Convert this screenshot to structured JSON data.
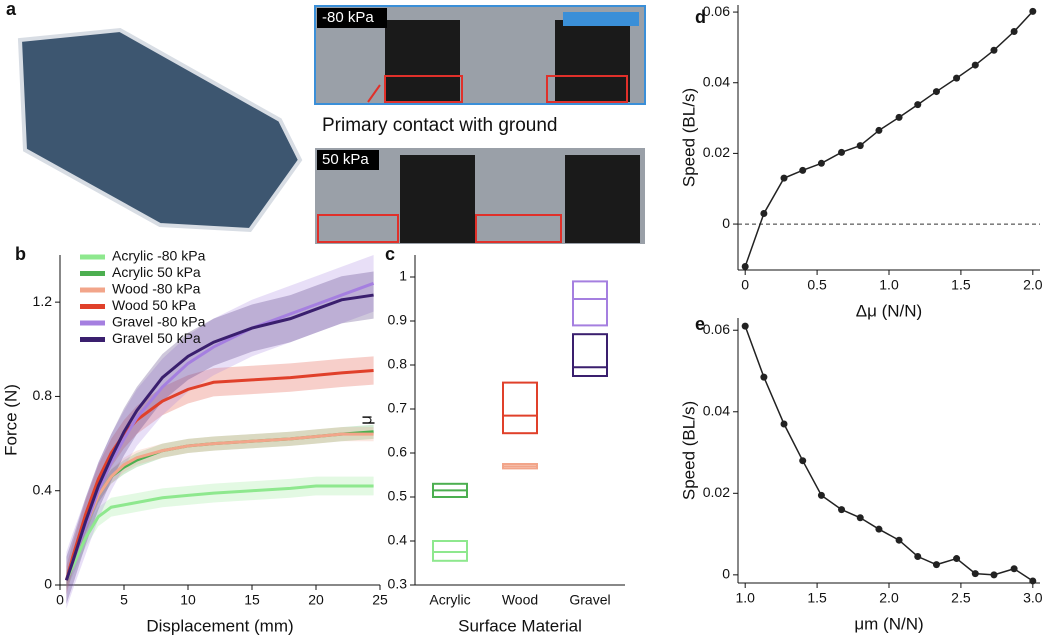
{
  "photo": {
    "panel_label": "a",
    "top_label": "-80 kPa",
    "bottom_label": "50 kPa",
    "annotation": "Primary contact with ground"
  },
  "chart_data": [
    {
      "type": "line",
      "panel_label": "b",
      "x_label": "Displacement (mm)",
      "y_label": "Force (N)",
      "x": [
        0.5,
        1,
        2,
        3,
        4,
        5,
        6,
        8,
        10,
        12,
        15,
        18,
        20,
        22,
        24.5
      ],
      "xlim": [
        0,
        25
      ],
      "ylim": [
        0,
        1.4
      ],
      "xticks": [
        0,
        5,
        10,
        15,
        20,
        25
      ],
      "yticks": [
        0,
        0.4,
        0.8,
        1.2
      ],
      "legend": "upper-left",
      "series": [
        {
          "name": "Acrylic -80 kPa",
          "color": "#8ee88e",
          "spread": 0.04,
          "values": [
            0.02,
            0.08,
            0.2,
            0.29,
            0.33,
            0.34,
            0.35,
            0.37,
            0.38,
            0.39,
            0.4,
            0.41,
            0.42,
            0.42,
            0.42
          ]
        },
        {
          "name": "Acrylic 50 kPa",
          "color": "#4caf50",
          "spread": 0.03,
          "values": [
            0.02,
            0.1,
            0.25,
            0.38,
            0.46,
            0.5,
            0.53,
            0.57,
            0.59,
            0.6,
            0.61,
            0.62,
            0.63,
            0.64,
            0.65
          ]
        },
        {
          "name": "Wood -80 kPa",
          "color": "#f2a58a",
          "spread": 0.03,
          "values": [
            0.02,
            0.1,
            0.25,
            0.38,
            0.46,
            0.51,
            0.54,
            0.57,
            0.59,
            0.6,
            0.61,
            0.62,
            0.63,
            0.64,
            0.64
          ]
        },
        {
          "name": "Wood 50 kPa",
          "color": "#e0402a",
          "spread": 0.06,
          "values": [
            0.02,
            0.12,
            0.3,
            0.45,
            0.56,
            0.64,
            0.7,
            0.78,
            0.83,
            0.86,
            0.87,
            0.88,
            0.89,
            0.9,
            0.91
          ]
        },
        {
          "name": "Gravel -80 kPa",
          "color": "#a57fe0",
          "spread": 0.12,
          "values": [
            0.02,
            0.1,
            0.25,
            0.4,
            0.52,
            0.62,
            0.71,
            0.84,
            0.94,
            1.01,
            1.09,
            1.15,
            1.19,
            1.23,
            1.28
          ]
        },
        {
          "name": "Gravel 50 kPa",
          "color": "#3a1f6e",
          "spread": 0.1,
          "values": [
            0.02,
            0.1,
            0.27,
            0.42,
            0.54,
            0.65,
            0.74,
            0.88,
            0.97,
            1.03,
            1.09,
            1.13,
            1.17,
            1.21,
            1.23
          ]
        }
      ]
    },
    {
      "type": "box",
      "panel_label": "c",
      "x_label": "Surface Material",
      "y_label": "μ",
      "categories": [
        "Acrylic",
        "Wood",
        "Gravel"
      ],
      "ylim": [
        0.3,
        1.05
      ],
      "yticks": [
        0.3,
        0.4,
        0.5,
        0.6,
        0.7,
        0.8,
        0.9,
        1
      ],
      "series": [
        {
          "colors": [
            "#8ee88e",
            "#f2a58a",
            "#a57fe0"
          ],
          "low": [
            0.355,
            0.565,
            0.89
          ],
          "median": [
            0.375,
            0.57,
            0.95
          ],
          "high": [
            0.4,
            0.575,
            0.99
          ]
        },
        {
          "colors": [
            "#4caf50",
            "#e0402a",
            "#3a1f6e"
          ],
          "low": [
            0.5,
            0.645,
            0.775
          ],
          "median": [
            0.515,
            0.685,
            0.795
          ],
          "high": [
            0.53,
            0.76,
            0.87
          ]
        }
      ]
    },
    {
      "type": "line",
      "panel_label": "d",
      "x_label": "Δμ (N/N)",
      "y_label": "Speed (BL/s)",
      "x": [
        0,
        0.13,
        0.27,
        0.4,
        0.53,
        0.67,
        0.8,
        0.93,
        1.07,
        1.2,
        1.33,
        1.47,
        1.6,
        1.73,
        1.87,
        2.0
      ],
      "xlim": [
        -0.05,
        2.05
      ],
      "ylim": [
        -0.013,
        0.062
      ],
      "xticks": [
        0,
        0.5,
        {
          "value": 1,
          "label": "1.0"
        },
        1.5,
        {
          "value": 2,
          "label": "2.0"
        }
      ],
      "yticks": [
        0,
        0.02,
        0.04,
        0.06
      ],
      "hline": 0,
      "series": [
        {
          "color": "#222222",
          "values": [
            -0.012,
            0.003,
            0.013,
            0.0152,
            0.0172,
            0.0203,
            0.0222,
            0.0265,
            0.0302,
            0.0338,
            0.0375,
            0.0413,
            0.045,
            0.0492,
            0.0545,
            0.0602
          ]
        }
      ]
    },
    {
      "type": "line",
      "panel_label": "e",
      "x_label": "μm (N/N)",
      "y_label": "Speed (BL/s)",
      "x": [
        1,
        1.13,
        1.27,
        1.4,
        1.53,
        1.67,
        1.8,
        1.93,
        2.07,
        2.2,
        2.33,
        2.47,
        2.6,
        2.73,
        2.87,
        3.0
      ],
      "xlim": [
        0.95,
        3.05
      ],
      "ylim": [
        -0.002,
        0.063
      ],
      "xticks": [
        {
          "value": 1,
          "label": "1.0"
        },
        1.5,
        {
          "value": 2,
          "label": "2.0"
        },
        2.5,
        {
          "value": 3,
          "label": "3.0"
        }
      ],
      "yticks": [
        0,
        0.02,
        0.04,
        0.06
      ],
      "series": [
        {
          "color": "#222222",
          "values": [
            0.061,
            0.0485,
            0.037,
            0.028,
            0.0195,
            0.016,
            0.014,
            0.0112,
            0.0085,
            0.0045,
            0.0025,
            0.004,
            0.0003,
            0,
            0.0015,
            -0.0015
          ]
        }
      ]
    }
  ]
}
